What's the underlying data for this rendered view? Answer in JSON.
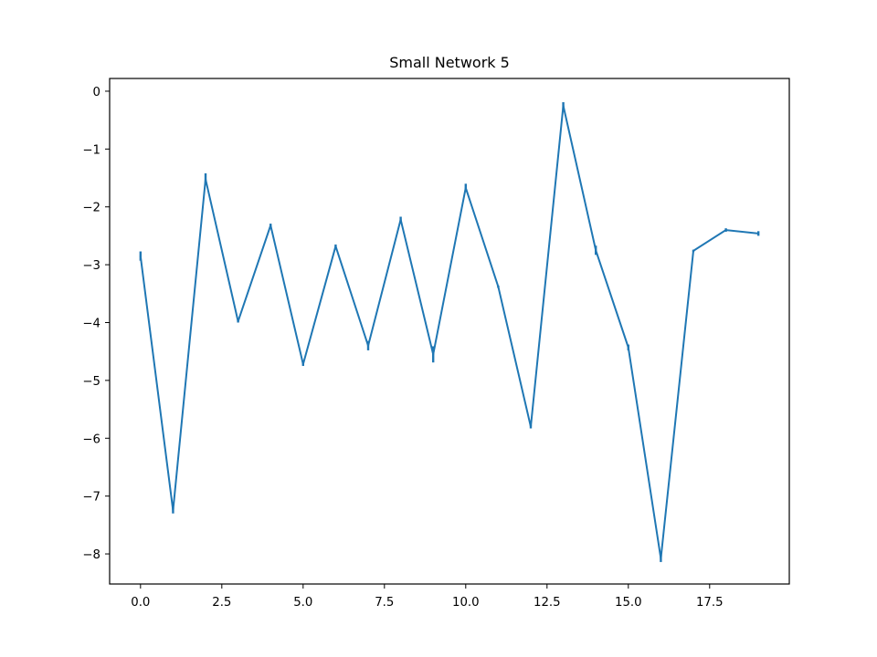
{
  "chart_data": {
    "type": "line",
    "title": "Small Network 5",
    "xlabel": "",
    "ylabel": "",
    "x": [
      0,
      1,
      2,
      3,
      4,
      5,
      6,
      7,
      8,
      9,
      10,
      11,
      12,
      13,
      14,
      15,
      16,
      17,
      18,
      19
    ],
    "series": [
      {
        "values": [
          -2.85,
          -7.25,
          -1.52,
          -3.98,
          -2.32,
          -4.72,
          -2.68,
          -4.4,
          -2.22,
          -4.55,
          -1.67,
          -3.38,
          -5.8,
          -0.25,
          -2.75,
          -4.43,
          -8.08,
          -2.76,
          -2.4,
          -2.46
        ],
        "error": [
          0.08,
          0.05,
          0.1,
          0.02,
          0.03,
          0.03,
          0.03,
          0.08,
          0.05,
          0.14,
          0.07,
          0.02,
          0.03,
          0.06,
          0.08,
          0.05,
          0.06,
          0.02,
          0.03,
          0.04
        ],
        "color": "#1f77b4"
      }
    ],
    "xlim": [
      -0.95,
      19.95
    ],
    "ylim": [
      -8.52,
      0.22
    ],
    "xticks": [
      0,
      2.5,
      5,
      7.5,
      10,
      12.5,
      15,
      17.5
    ],
    "xtick_labels": [
      "0.0",
      "2.5",
      "5.0",
      "7.5",
      "10.0",
      "12.5",
      "15.0",
      "17.5"
    ],
    "yticks": [
      0,
      -1,
      -2,
      -3,
      -4,
      -5,
      -6,
      -7,
      -8
    ],
    "ytick_labels": [
      "0",
      "−1",
      "−2",
      "−3",
      "−4",
      "−5",
      "−6",
      "−7",
      "−8"
    ],
    "grid": false,
    "legend": "none"
  }
}
